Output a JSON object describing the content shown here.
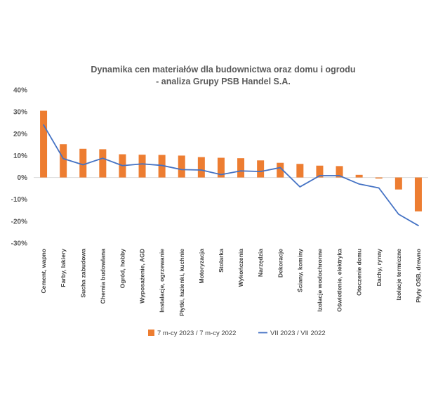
{
  "chart_data": {
    "type": "bar",
    "title": "Dynamika cen materiałów dla budownictwa oraz domu i ogrodu",
    "subtitle": "- analiza Grupy PSB Handel S.A.",
    "categories": [
      "Cement, wapno",
      "Farby, lakiery",
      "Sucha zabudowa",
      "Chemia budowlana",
      "Ogród, hobby",
      "Wyposażenie, AGD",
      "Instalacje, ogrzewanie",
      "Płytki, łazienki, kuchnie",
      "Motoryzacja",
      "Stolarka",
      "Wykończenia",
      "Narzędzia",
      "Dekoracje",
      "Ściany, kominy",
      "Izolacje wodochronne",
      "Oświetlenie, elektryka",
      "Otoczenie domu",
      "Dachy, rynny",
      "Izolacje termiczne",
      "Płyty OSB, drewno"
    ],
    "series": [
      {
        "name": "7 m-cy 2023 / 7 m-cy 2022",
        "kind": "bar",
        "color": "#ED7D31",
        "values": [
          30.5,
          15.2,
          13.1,
          12.9,
          10.6,
          10.4,
          10.3,
          10.0,
          9.3,
          9.0,
          8.8,
          7.8,
          6.7,
          6.2,
          5.4,
          5.2,
          1.2,
          -0.5,
          -5.5,
          -15.5
        ]
      },
      {
        "name": "VII 2023 / VII 2022",
        "kind": "line",
        "color": "#4472C4",
        "values": [
          24.0,
          8.6,
          5.8,
          8.8,
          5.4,
          6.2,
          5.5,
          3.6,
          3.4,
          1.3,
          3.0,
          2.7,
          4.5,
          -4.3,
          0.8,
          0.8,
          -3.0,
          -4.8,
          -16.8,
          -22.0
        ]
      }
    ],
    "ylim": [
      -30,
      40
    ],
    "yticks": [
      "-30%",
      "-20%",
      "-10%",
      "0%",
      "10%",
      "20%",
      "30%",
      "40%"
    ],
    "ytick_values": [
      -30,
      -20,
      -10,
      0,
      10,
      20,
      30,
      40
    ],
    "grid": false,
    "legend_position": "bottom"
  }
}
